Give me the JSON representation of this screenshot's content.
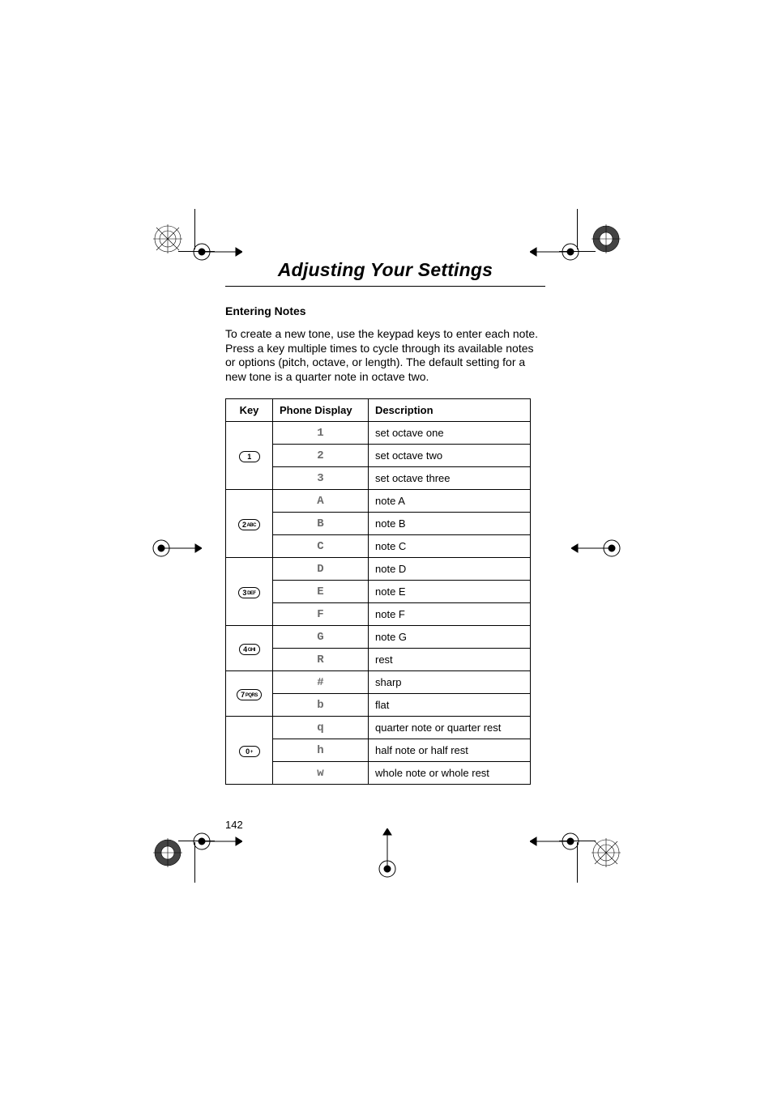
{
  "title": "Adjusting Your Settings",
  "subhead": "Entering Notes",
  "para": "To create a new tone, use the keypad keys to enter each note. Press a key multiple times to cycle through its available notes or options (pitch, octave, or length). The default setting for a new tone is a quarter note in octave two.",
  "table": {
    "headers": {
      "key": "Key",
      "display": "Phone Display",
      "desc": "Description"
    },
    "groups": [
      {
        "key_main": "1",
        "key_sub": "",
        "rows": [
          {
            "display": "1",
            "desc": "set octave one"
          },
          {
            "display": "2",
            "desc": "set octave two"
          },
          {
            "display": "3",
            "desc": "set octave three"
          }
        ]
      },
      {
        "key_main": "2",
        "key_sub": "ABC",
        "rows": [
          {
            "display": "A",
            "desc": "note A"
          },
          {
            "display": "B",
            "desc": "note B"
          },
          {
            "display": "C",
            "desc": "note C"
          }
        ]
      },
      {
        "key_main": "3",
        "key_sub": "DEF",
        "rows": [
          {
            "display": "D",
            "desc": "note D"
          },
          {
            "display": "E",
            "desc": "note E"
          },
          {
            "display": "F",
            "desc": "note F"
          }
        ]
      },
      {
        "key_main": "4",
        "key_sub": "GHI",
        "rows": [
          {
            "display": "G",
            "desc": "note G"
          },
          {
            "display": "R",
            "desc": "rest"
          }
        ]
      },
      {
        "key_main": "7",
        "key_sub": "PQRS",
        "rows": [
          {
            "display": "#",
            "desc": "sharp"
          },
          {
            "display": "b",
            "desc": "flat"
          }
        ]
      },
      {
        "key_main": "0",
        "key_sub": "+",
        "rows": [
          {
            "display": "q",
            "desc": "quarter note or quarter rest"
          },
          {
            "display": "h",
            "desc": "half note or half rest"
          },
          {
            "display": "w",
            "desc": "whole note or whole rest"
          }
        ]
      }
    ]
  },
  "page_number": "142",
  "colors": {
    "display_text": "#6a6a6a",
    "black": "#000000"
  }
}
